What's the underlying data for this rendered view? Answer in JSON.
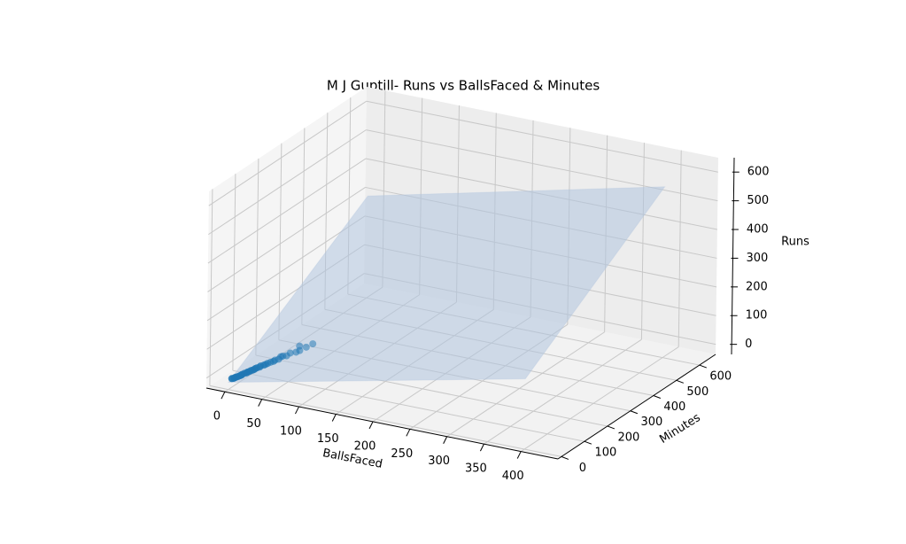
{
  "chart_data": {
    "type": "scatter3d",
    "title": "M J Guptill- Runs vs BallsFaced & Minutes",
    "x_label": "BallsFaced",
    "y_label": "Minutes",
    "z_label": "Runs",
    "x": [
      3,
      5,
      6,
      7,
      9,
      11,
      12,
      13,
      15,
      17,
      18,
      20,
      21,
      23,
      24,
      25,
      27,
      29,
      30,
      33,
      35,
      36,
      39,
      42,
      43,
      47,
      48,
      51,
      54,
      57,
      63,
      66,
      66,
      72,
      78
    ],
    "y": [
      5,
      7,
      9,
      11,
      13,
      15,
      18,
      17,
      21,
      24,
      25,
      27,
      30,
      31,
      35,
      36,
      37,
      42,
      43,
      47,
      48,
      54,
      57,
      60,
      63,
      66,
      72,
      71,
      78,
      84,
      90,
      96,
      95,
      105,
      114
    ],
    "z": [
      2,
      3,
      5,
      6,
      8,
      11,
      12,
      15,
      18,
      19,
      22,
      24,
      26,
      28,
      29,
      32,
      35,
      36,
      40,
      42,
      45,
      46,
      50,
      53,
      56,
      60,
      66,
      70,
      69,
      77,
      80,
      84,
      100,
      94,
      104
    ],
    "color": "#1f77b4",
    "surface": {
      "x": [
        0,
        400
      ],
      "y": [
        0,
        600
      ],
      "z": [
        [
          -10,
          210
        ],
        [
          320,
          560
        ]
      ],
      "color": "#b0c4de"
    },
    "xlim": [
      -25,
      450
    ],
    "ylim": [
      -15,
      670
    ],
    "zlim": [
      -35,
      650
    ],
    "xticks": [
      0,
      50,
      100,
      150,
      200,
      250,
      300,
      350,
      400
    ],
    "yticks": [
      0,
      100,
      200,
      300,
      400,
      500,
      600
    ],
    "zticks": [
      0,
      100,
      200,
      300,
      400,
      500,
      600
    ],
    "grid": true
  }
}
